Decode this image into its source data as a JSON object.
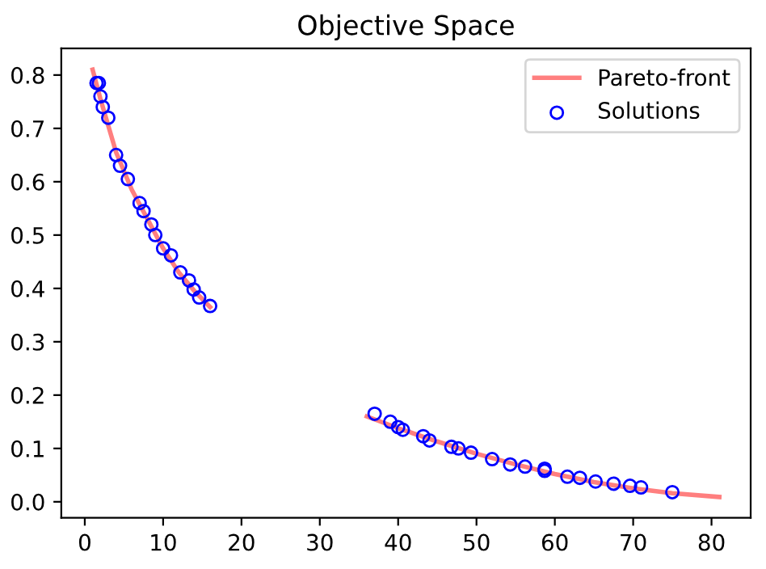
{
  "chart_data": {
    "type": "scatter",
    "title": "Objective Space",
    "series": [
      {
        "name": "Pareto-front",
        "type": "line",
        "color": "#ff7f7f",
        "marker": "none",
        "line_style": "solid",
        "x": [
          1,
          2,
          4,
          6,
          8,
          10,
          12,
          14,
          16,
          26,
          36,
          40,
          45,
          50,
          55,
          60,
          65,
          70,
          75,
          81
        ],
        "values": [
          0.81,
          0.755,
          0.655,
          0.585,
          0.53,
          0.475,
          0.43,
          0.395,
          0.365,
          null,
          0.16,
          0.138,
          0.113,
          0.09,
          0.07,
          0.052,
          0.037,
          0.025,
          0.016,
          0.009
        ]
      },
      {
        "name": "Solutions",
        "color": "#0000ff",
        "marker": "circle",
        "x": [
          1.5,
          1.8,
          2,
          2.3,
          3,
          4,
          4.5,
          5.5,
          7,
          7.5,
          8.5,
          9,
          10,
          11,
          12.2,
          13.3,
          13.9,
          14.6,
          16,
          37,
          39,
          40,
          40.6,
          43.2,
          44,
          46.8,
          47.7,
          49.3,
          52,
          54.3,
          56.2,
          58.7,
          58.7,
          61.6,
          63.2,
          65.2,
          67.5,
          69.6,
          71,
          75
        ],
        "values": [
          0.785,
          0.785,
          0.76,
          0.74,
          0.72,
          0.65,
          0.63,
          0.605,
          0.56,
          0.545,
          0.52,
          0.5,
          0.475,
          0.462,
          0.43,
          0.415,
          0.398,
          0.383,
          0.367,
          0.165,
          0.15,
          0.14,
          0.135,
          0.123,
          0.115,
          0.103,
          0.1,
          0.092,
          0.08,
          0.07,
          0.066,
          0.062,
          0.058,
          0.047,
          0.045,
          0.038,
          0.034,
          0.03,
          0.027,
          0.018
        ]
      }
    ],
    "xlim": [
      -3,
      85
    ],
    "ylim": [
      -0.03,
      0.85
    ],
    "xticks": [
      0,
      10,
      20,
      30,
      40,
      50,
      60,
      70,
      80
    ],
    "yticks": [
      {
        "value": 0,
        "label": "0.0"
      },
      0.1,
      0.2,
      0.3,
      0.4,
      0.5,
      0.6,
      0.7,
      0.8
    ],
    "legend": "top right",
    "grid": false
  }
}
